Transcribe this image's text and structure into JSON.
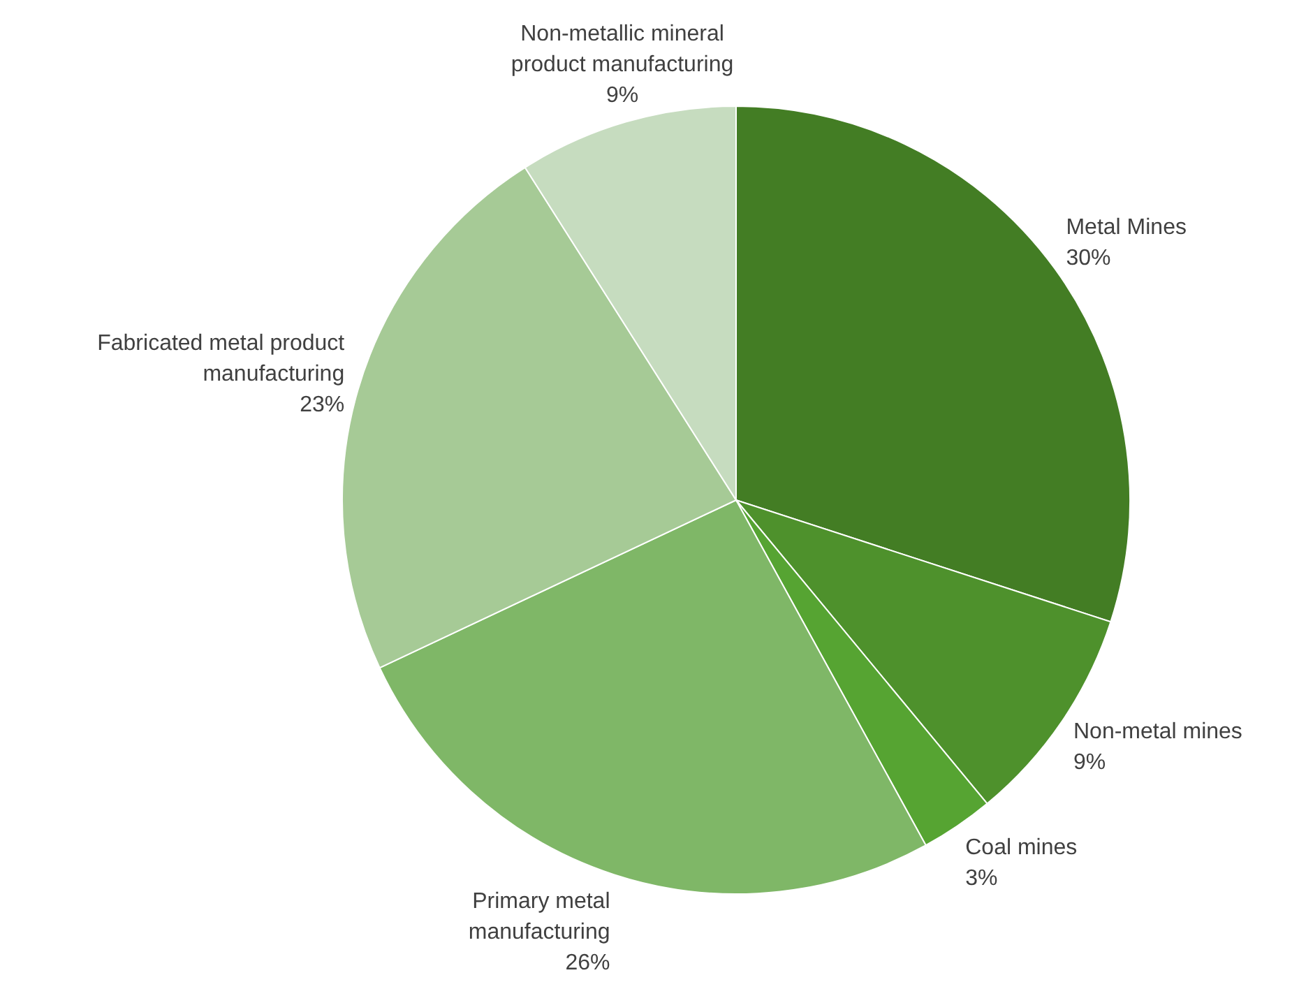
{
  "chart_data": {
    "type": "pie",
    "categories": [
      "Metal Mines",
      "Non-metal mines",
      "Coal mines",
      "Primary metal manufacturing",
      "Fabricated metal product manufacturing",
      "Non-metallic mineral product manufacturing"
    ],
    "values": [
      30,
      9,
      3,
      26,
      23,
      9
    ],
    "value_labels": [
      "30%",
      "9%",
      "3%",
      "26%",
      "23%",
      "9%"
    ],
    "colors": [
      "#437d24",
      "#4e912c",
      "#56a432",
      "#7fb767",
      "#a6ca96",
      "#c6dcbf"
    ]
  }
}
